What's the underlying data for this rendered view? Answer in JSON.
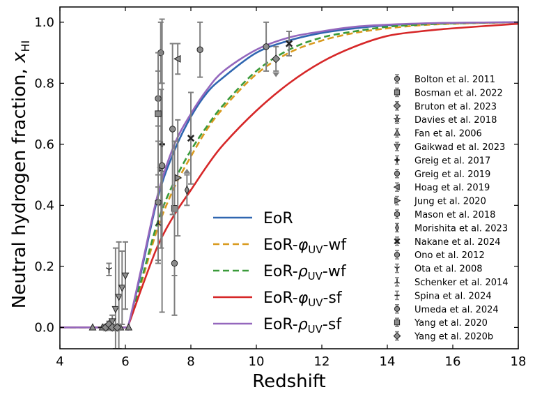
{
  "chart_data": {
    "type": "line",
    "title": "",
    "xlabel": "Redshift",
    "ylabel_main": "Neutral hydrogen fraction, ",
    "ylabel_sym": "x",
    "ylabel_sub": "HI",
    "xlim": [
      4,
      18
    ],
    "ylim": [
      -0.07,
      1.05
    ],
    "xticks": [
      4,
      6,
      8,
      10,
      12,
      14,
      16,
      18
    ],
    "xtick_labels": [
      "4",
      "6",
      "8",
      "10",
      "12",
      "14",
      "16",
      "18"
    ],
    "yticks": [
      0.0,
      0.2,
      0.4,
      0.6,
      0.8,
      1.0
    ],
    "ytick_labels": [
      "0.0",
      "0.2",
      "0.4",
      "0.6",
      "0.8",
      "1.0"
    ],
    "grid": false,
    "legend_models_position": "center",
    "legend_obs_position": "right",
    "series": [
      {
        "name": "EoR",
        "label_base": "EoR",
        "label_sym": "",
        "label_sub": "",
        "label_suffix": "",
        "color": "#2f66b0",
        "dash": false,
        "x": [
          4,
          5,
          6,
          6.1,
          6.5,
          7,
          7.5,
          8,
          8.5,
          9,
          10,
          11,
          12,
          13,
          14,
          15,
          16,
          18
        ],
        "y": [
          0,
          0,
          0,
          0.01,
          0.19,
          0.43,
          0.58,
          0.69,
          0.77,
          0.82,
          0.9,
          0.94,
          0.965,
          0.98,
          0.99,
          0.995,
          0.998,
          1.0
        ]
      },
      {
        "name": "EoR-phiUV-wf",
        "label_base": "EoR-",
        "label_sym": "φ",
        "label_sub": "UV",
        "label_suffix": "-wf",
        "color": "#d99a1e",
        "dash": true,
        "x": [
          4,
          5,
          6,
          6.1,
          6.5,
          7,
          7.5,
          8,
          8.5,
          9,
          10,
          11,
          12,
          13,
          14,
          15,
          16,
          18
        ],
        "y": [
          0,
          0,
          0,
          0.01,
          0.15,
          0.33,
          0.46,
          0.56,
          0.65,
          0.72,
          0.83,
          0.9,
          0.94,
          0.965,
          0.98,
          0.99,
          0.995,
          1.0
        ]
      },
      {
        "name": "EoR-rhoUV-wf",
        "label_base": "EoR-",
        "label_sym": "ρ",
        "label_sub": "UV",
        "label_suffix": "-wf",
        "color": "#3a9a3a",
        "dash": true,
        "x": [
          4,
          5,
          6,
          6.1,
          6.5,
          7,
          7.5,
          8,
          8.5,
          9,
          10,
          11,
          12,
          13,
          14,
          15,
          16,
          18
        ],
        "y": [
          0,
          0,
          0,
          0.01,
          0.16,
          0.35,
          0.48,
          0.58,
          0.66,
          0.73,
          0.84,
          0.91,
          0.95,
          0.97,
          0.985,
          0.992,
          0.996,
          1.0
        ]
      },
      {
        "name": "EoR-phiUV-sf",
        "label_base": "EoR-",
        "label_sym": "φ",
        "label_sub": "UV",
        "label_suffix": "-sf",
        "color": "#d62728",
        "dash": false,
        "x": [
          4,
          5,
          6,
          6.1,
          6.5,
          7,
          7.5,
          8,
          8.5,
          9,
          10,
          11,
          12,
          13,
          14,
          15,
          16,
          18
        ],
        "y": [
          0,
          0,
          0,
          0.01,
          0.13,
          0.27,
          0.37,
          0.45,
          0.53,
          0.6,
          0.71,
          0.8,
          0.87,
          0.92,
          0.955,
          0.97,
          0.98,
          0.995
        ]
      },
      {
        "name": "EoR-rhoUV-sf",
        "label_base": "EoR-",
        "label_sym": "ρ",
        "label_sub": "UV",
        "label_suffix": "-sf",
        "color": "#9467bd",
        "dash": false,
        "x": [
          4,
          5,
          6,
          6.1,
          6.5,
          7,
          7.5,
          8,
          8.5,
          9,
          10,
          11,
          12,
          13,
          14,
          15,
          16,
          18
        ],
        "y": [
          0,
          0,
          0,
          0.01,
          0.2,
          0.44,
          0.6,
          0.7,
          0.78,
          0.84,
          0.91,
          0.95,
          0.97,
          0.985,
          0.992,
          0.996,
          0.998,
          1.0
        ]
      }
    ],
    "observations": [
      {
        "label": "Bolton et al. 2011",
        "marker": "circle",
        "points": [
          {
            "x": 7.08,
            "y": 0.9,
            "err": 0.1
          },
          {
            "x": 10.3,
            "y": 0.92,
            "err": 0.08
          }
        ]
      },
      {
        "label": "Bosman et al. 2022",
        "marker": "square",
        "points": [
          {
            "x": 7.5,
            "y": 0.39,
            "err": 0.22
          }
        ]
      },
      {
        "label": "Bruton et al. 2023",
        "marker": "diamond",
        "points": [
          {
            "x": 10.6,
            "y": 0.88,
            "err": 0.04,
            "upper": true
          }
        ]
      },
      {
        "label": "Davies et al. 2018",
        "marker": "star",
        "points": [
          {
            "x": 7.09,
            "y": 0.52,
            "err": 0.26
          }
        ]
      },
      {
        "label": "Fan et al. 2006",
        "marker": "triangle-up",
        "points": [
          {
            "x": 5.0,
            "y": 0.0,
            "err": 0.0
          },
          {
            "x": 5.3,
            "y": 0.0,
            "err": 0.0
          },
          {
            "x": 5.55,
            "y": 0.0,
            "err": 0.0
          },
          {
            "x": 5.85,
            "y": 0.0,
            "err": 0.0
          },
          {
            "x": 6.1,
            "y": 0.0,
            "err": 0.0
          }
        ]
      },
      {
        "label": "Gaikwad et al. 2023",
        "marker": "triangle-down",
        "points": [
          {
            "x": 5.7,
            "y": 0.06,
            "err": 0.2
          },
          {
            "x": 5.8,
            "y": 0.1,
            "err": 0.18
          },
          {
            "x": 5.9,
            "y": 0.13,
            "err": 0.12
          },
          {
            "x": 6.0,
            "y": 0.17,
            "err": 0.11
          },
          {
            "x": 5.6,
            "y": 0.02,
            "err": 0.02
          }
        ]
      },
      {
        "label": "Greig et al. 2017",
        "marker": "plus",
        "points": [
          {
            "x": 7.12,
            "y": 0.6,
            "err": 0.2
          }
        ]
      },
      {
        "label": "Greig et al. 2019",
        "marker": "circle",
        "points": [
          {
            "x": 7.5,
            "y": 0.21,
            "err": 0.17
          }
        ]
      },
      {
        "label": "Hoag et al. 2019",
        "marker": "triangle-left",
        "points": [
          {
            "x": 7.6,
            "y": 0.88,
            "err": 0.05
          }
        ]
      },
      {
        "label": "Jung et al. 2020",
        "marker": "triangle-right",
        "points": [
          {
            "x": 7.6,
            "y": 0.49,
            "err": 0.19
          }
        ]
      },
      {
        "label": "Mason et al. 2018",
        "marker": "hexagon",
        "points": [
          {
            "x": 7.0,
            "y": 0.41,
            "err": 0.2
          }
        ]
      },
      {
        "label": "Morishita et al. 2023",
        "marker": "thin-diamond",
        "points": [
          {
            "x": 7.88,
            "y": 0.45,
            "err": 0.05,
            "lower": true
          }
        ]
      },
      {
        "label": "Nakane et al. 2024",
        "marker": "x",
        "points": [
          {
            "x": 8.0,
            "y": 0.62,
            "err": 0.15
          },
          {
            "x": 11.0,
            "y": 0.93,
            "err": 0.04
          }
        ]
      },
      {
        "label": "Ono et al. 2012",
        "marker": "circle",
        "points": [
          {
            "x": 7.0,
            "y": 0.75,
            "err": 0.09
          }
        ]
      },
      {
        "label": "Ota et al. 2008",
        "marker": "tri-down",
        "points": [
          {
            "x": 5.5,
            "y": 0.19,
            "err": 0.02
          }
        ]
      },
      {
        "label": "Schenker et al. 2014",
        "marker": "tri-up",
        "points": [
          {
            "x": 7.0,
            "y": 0.34,
            "err": 0.12
          }
        ]
      },
      {
        "label": "Spina et al. 2024",
        "marker": "tick",
        "points": [
          {
            "x": 5.25,
            "y": 0.0,
            "err": 0.0
          }
        ]
      },
      {
        "label": "Umeda et al. 2024",
        "marker": "circle",
        "points": [
          {
            "x": 7.12,
            "y": 0.53,
            "err": 0.48
          },
          {
            "x": 7.44,
            "y": 0.65,
            "err": 0.28
          },
          {
            "x": 8.28,
            "y": 0.91,
            "err": 0.09
          }
        ]
      },
      {
        "label": "Yang et al. 2020",
        "marker": "square",
        "points": [
          {
            "x": 7.0,
            "y": 0.7,
            "err": 0.2
          }
        ]
      },
      {
        "label": "Yang et al. 2020b",
        "marker": "diamond",
        "points": [
          {
            "x": 5.4,
            "y": 0.0,
            "err": 0.01
          },
          {
            "x": 5.5,
            "y": 0.01,
            "err": 0.01
          },
          {
            "x": 5.6,
            "y": 0.0,
            "err": 0.01
          },
          {
            "x": 5.75,
            "y": 0.0,
            "err": 0.01
          }
        ]
      }
    ]
  }
}
